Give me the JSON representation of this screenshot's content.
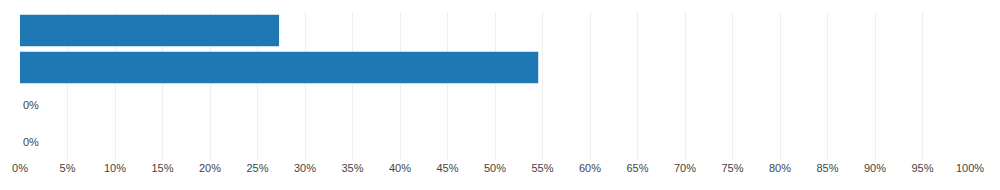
{
  "chart_data": {
    "type": "bar",
    "orientation": "horizontal",
    "categories": [
      null,
      null,
      null,
      null
    ],
    "values": [
      27.27,
      54.55,
      0.0,
      0.0
    ],
    "data_labels": true,
    "value_labels": [
      null,
      null,
      "0%",
      "0%"
    ],
    "xlim": [
      0,
      100
    ],
    "xticks": [
      {
        "value": 0,
        "label": "0%"
      },
      {
        "value": 5,
        "label": "5%"
      },
      {
        "value": 10,
        "label": "10%"
      },
      {
        "value": 15,
        "label": "15%"
      },
      {
        "value": 20,
        "label": "20%"
      },
      {
        "value": 25,
        "label": "25%"
      },
      {
        "value": 30,
        "label": "30%"
      },
      {
        "value": 35,
        "label": "35%"
      },
      {
        "value": 40,
        "label": "40%"
      },
      {
        "value": 45,
        "label": "45%"
      },
      {
        "value": 50,
        "label": "50%"
      },
      {
        "value": 55,
        "label": "55%"
      },
      {
        "value": 60,
        "label": "60%"
      },
      {
        "value": 65,
        "label": "65%"
      },
      {
        "value": 70,
        "label": "70%"
      },
      {
        "value": 75,
        "label": "75%"
      },
      {
        "value": 80,
        "label": "80%"
      },
      {
        "value": 85,
        "label": "85%"
      },
      {
        "value": 90,
        "label": "90%"
      },
      {
        "value": 95,
        "label": "95%"
      },
      {
        "value": 100,
        "label": "100%"
      }
    ],
    "grid": true,
    "tick_labels": "x"
  }
}
